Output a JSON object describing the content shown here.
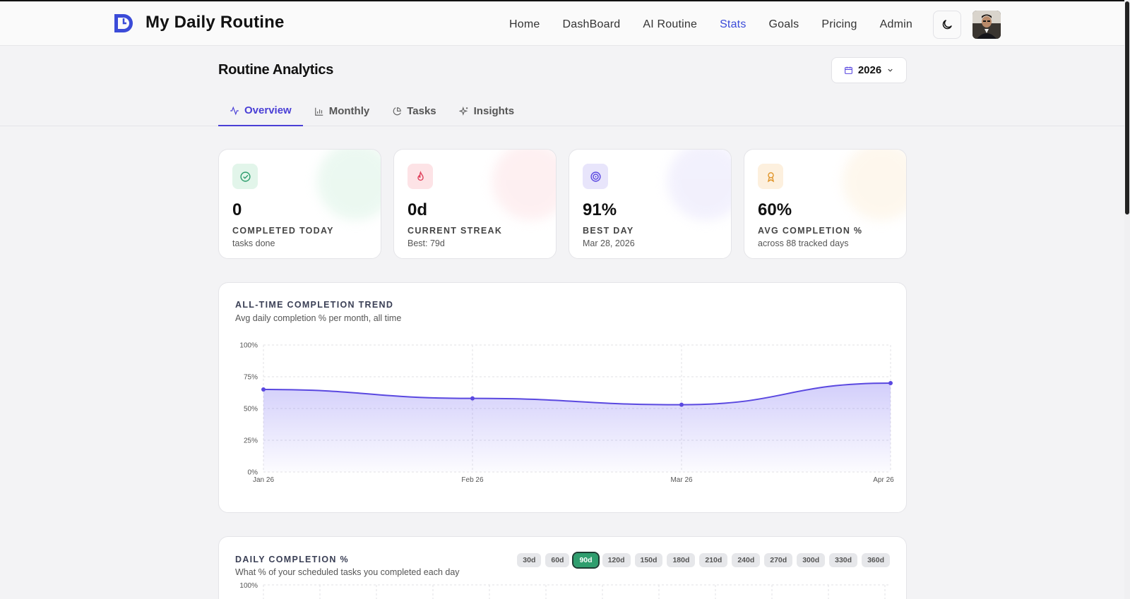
{
  "brand": {
    "name": "My Daily Routine"
  },
  "nav": [
    "Home",
    "DashBoard",
    "AI Routine",
    "Stats",
    "Goals",
    "Pricing",
    "Admin"
  ],
  "nav_active": "Stats",
  "page": {
    "title": "Routine Analytics",
    "year": "2026"
  },
  "tabs": [
    {
      "label": "Overview",
      "icon": "activity-icon",
      "active": true
    },
    {
      "label": "Monthly",
      "icon": "bar-chart-icon",
      "active": false
    },
    {
      "label": "Tasks",
      "icon": "pie-chart-icon",
      "active": false
    },
    {
      "label": "Insights",
      "icon": "sparkles-icon",
      "active": false
    }
  ],
  "stats": [
    {
      "value": "0",
      "label": "COMPLETED TODAY",
      "sub": "tasks done",
      "icon": "check-circle-icon",
      "color": "#2f9e6e"
    },
    {
      "value": "0d",
      "label": "CURRENT STREAK",
      "sub": "Best: 79d",
      "icon": "flame-icon",
      "color": "#e0445e"
    },
    {
      "value": "91%",
      "label": "BEST DAY",
      "sub": "Mar 28, 2026",
      "icon": "target-icon",
      "color": "#5a48e0"
    },
    {
      "value": "60%",
      "label": "AVG COMPLETION %",
      "sub": "across 88 tracked days",
      "icon": "award-icon",
      "color": "#e0952a"
    }
  ],
  "trend": {
    "title": "ALL-TIME COMPLETION TREND",
    "subtitle": "Avg daily completion % per month, all time"
  },
  "chart_data": {
    "type": "area",
    "title": "ALL-TIME COMPLETION TREND",
    "categories": [
      "Jan 26",
      "Feb 26",
      "Mar 26",
      "Apr 26"
    ],
    "values": [
      65,
      58,
      53,
      70
    ],
    "ylim": [
      0,
      100
    ],
    "yticks": [
      "0%",
      "25%",
      "50%",
      "75%",
      "100%"
    ],
    "grid": true,
    "color": "#5a48e0"
  },
  "daily": {
    "title": "DAILY COMPLETION %",
    "subtitle": "What % of your scheduled tasks you completed each day",
    "top_tick": "100%",
    "ranges": [
      "30d",
      "60d",
      "90d",
      "120d",
      "150d",
      "180d",
      "210d",
      "240d",
      "270d",
      "300d",
      "330d",
      "360d"
    ],
    "active_range": "90d"
  }
}
